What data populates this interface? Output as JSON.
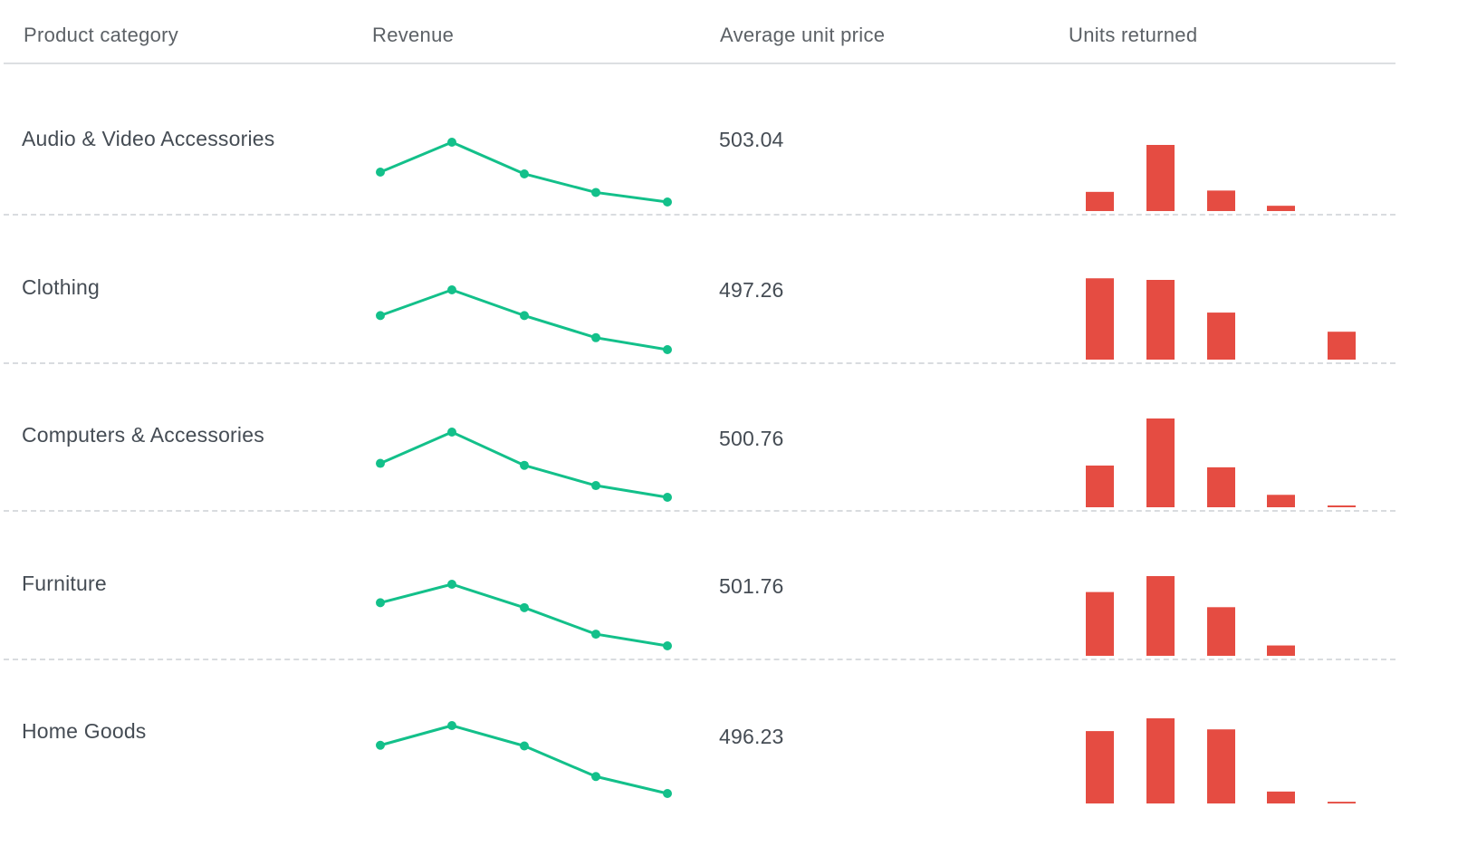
{
  "table": {
    "columns": [
      "Product category",
      "Revenue",
      "Average unit price",
      "Units returned"
    ],
    "rows": [
      {
        "category": "Audio & Video Accessories",
        "avg_unit_price": "503.04"
      },
      {
        "category": "Clothing",
        "avg_unit_price": "497.26"
      },
      {
        "category": "Computers & Accessories",
        "avg_unit_price": "500.76"
      },
      {
        "category": "Furniture",
        "avg_unit_price": "501.76"
      },
      {
        "category": "Home Goods",
        "avg_unit_price": "496.23"
      }
    ]
  },
  "colors": {
    "revenue_line": "#13c08a",
    "returns_bar": "#e54c42"
  },
  "chart_data": [
    {
      "type": "line",
      "title": "",
      "xlabel": "",
      "ylabel": "",
      "series": [
        {
          "values": [
            50,
            100,
            47,
            16,
            0
          ]
        },
        {
          "values": [
            57,
            100,
            57,
            20,
            0
          ]
        },
        {
          "values": [
            52,
            100,
            49,
            18,
            0
          ]
        },
        {
          "values": [
            70,
            100,
            62,
            19,
            0
          ]
        },
        {
          "values": [
            71,
            100,
            70,
            25,
            0
          ]
        }
      ]
    },
    {
      "type": "bar",
      "title": "",
      "xlabel": "",
      "ylabel": "",
      "series": [
        {
          "values": [
            29,
            100,
            31,
            8,
            0
          ]
        },
        {
          "values": [
            102,
            100,
            59,
            0,
            35
          ]
        },
        {
          "values": [
            47,
            100,
            45,
            14,
            2
          ]
        },
        {
          "values": [
            80,
            100,
            61,
            13,
            0
          ]
        },
        {
          "values": [
            85,
            100,
            87,
            14,
            2
          ]
        }
      ]
    }
  ]
}
